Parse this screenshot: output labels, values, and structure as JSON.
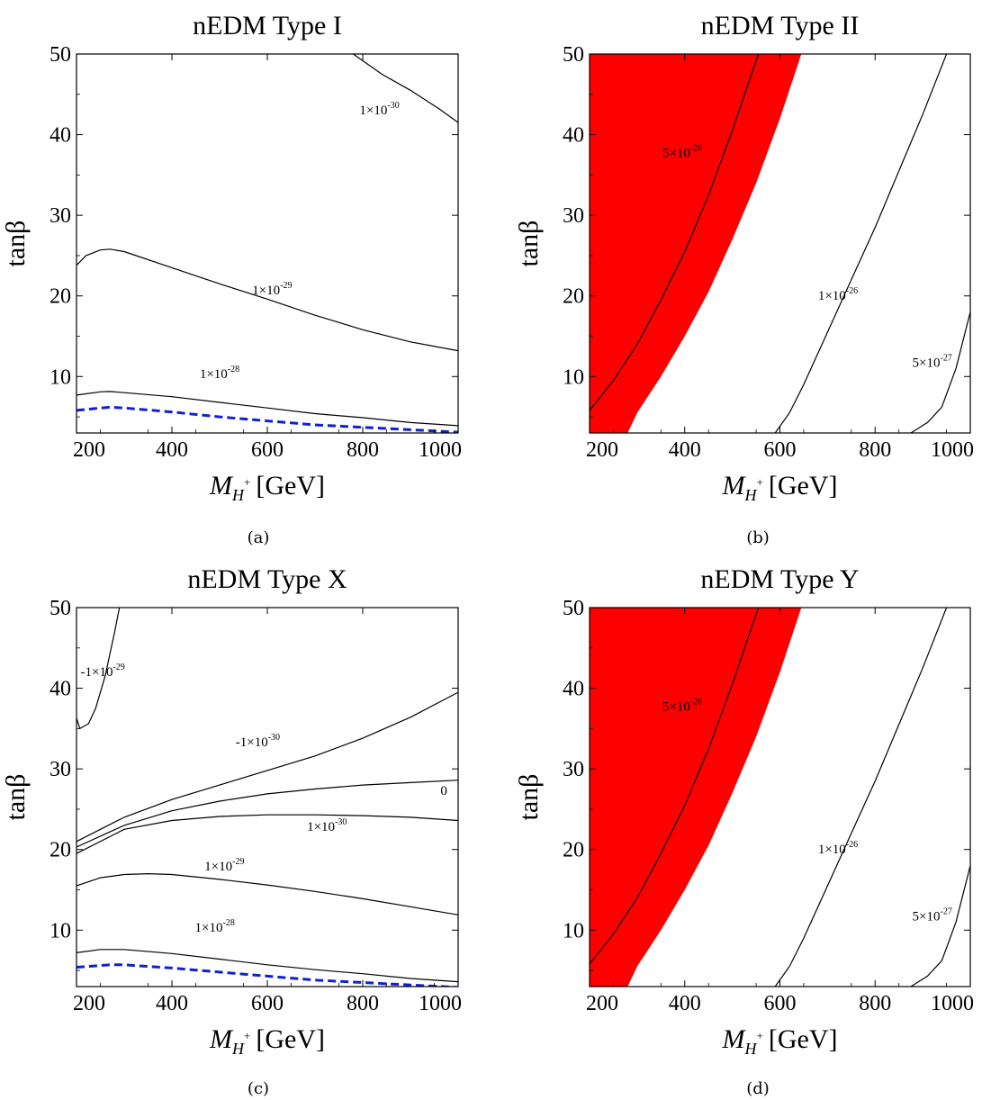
{
  "chart_data": [
    {
      "type": "line",
      "title": "nEDM Type I",
      "caption": "(a)",
      "xlabel": {
        "main": "M",
        "sub": "H",
        "sup": "+",
        "unit": "[GeV]"
      },
      "ylabel": "tanβ",
      "xlim": [
        200,
        1000
      ],
      "ylim": [
        3,
        50
      ],
      "xticks": [
        "200",
        "400",
        "600",
        "800",
        "1000"
      ],
      "yticks": [
        "10",
        "20",
        "30",
        "40",
        "50"
      ],
      "fill_regions": [],
      "series": [
        {
          "label_base": "1×10",
          "label_exp": "-30",
          "label_at": [
            835,
            42.5
          ],
          "style": "solid",
          "color": "#000000",
          "points": [
            [
              780,
              50
            ],
            [
              840,
              47.5
            ],
            [
              900,
              45.5
            ],
            [
              960,
              43.2
            ],
            [
              1000,
              41.5
            ]
          ]
        },
        {
          "label_base": "1×10",
          "label_exp": "-29",
          "label_at": [
            610,
            20.2
          ],
          "style": "solid",
          "color": "#000000",
          "points": [
            [
              200,
              23.8
            ],
            [
              220,
              25.0
            ],
            [
              250,
              25.7
            ],
            [
              270,
              25.8
            ],
            [
              300,
              25.5
            ],
            [
              400,
              23.5
            ],
            [
              500,
              21.5
            ],
            [
              600,
              19.6
            ],
            [
              700,
              17.6
            ],
            [
              800,
              15.8
            ],
            [
              900,
              14.3
            ],
            [
              1000,
              13.2
            ]
          ]
        },
        {
          "label_base": "1×10",
          "label_exp": "-28",
          "label_at": [
            500,
            9.8
          ],
          "style": "solid",
          "color": "#000000",
          "points": [
            [
              200,
              7.7
            ],
            [
              250,
              8.1
            ],
            [
              270,
              8.15
            ],
            [
              300,
              8.0
            ],
            [
              400,
              7.5
            ],
            [
              500,
              6.8
            ],
            [
              600,
              6.1
            ],
            [
              700,
              5.4
            ],
            [
              800,
              4.9
            ],
            [
              900,
              4.3
            ],
            [
              1000,
              3.9
            ]
          ]
        },
        {
          "style": "dashed",
          "color": "#1020d0",
          "points": [
            [
              200,
              5.8
            ],
            [
              270,
              6.2
            ],
            [
              300,
              6.1
            ],
            [
              400,
              5.6
            ],
            [
              500,
              5.0
            ],
            [
              600,
              4.5
            ],
            [
              700,
              4.0
            ],
            [
              800,
              3.7
            ],
            [
              900,
              3.4
            ],
            [
              1000,
              3.1
            ]
          ]
        }
      ]
    },
    {
      "type": "line",
      "title": "nEDM Type II",
      "caption": "(b)",
      "xlabel": {
        "main": "M",
        "sub": "H",
        "sup": "+",
        "unit": "[GeV]"
      },
      "ylabel": "tanβ",
      "xlim": [
        200,
        1000
      ],
      "ylim": [
        3,
        50
      ],
      "xticks": [
        "200",
        "400",
        "600",
        "800",
        "1000"
      ],
      "yticks": [
        "10",
        "20",
        "30",
        "40",
        "50"
      ],
      "fill_regions": [
        {
          "color": "#ff0000",
          "points": [
            [
              200,
              50
            ],
            [
              645,
              50
            ],
            [
              600,
              42
            ],
            [
              550,
              34
            ],
            [
              500,
              27
            ],
            [
              450,
              20.5
            ],
            [
              400,
              15
            ],
            [
              350,
              10
            ],
            [
              300,
              5.5
            ],
            [
              280,
              3
            ],
            [
              200,
              3
            ]
          ]
        }
      ],
      "series": [
        {
          "label_base": "5×10",
          "label_exp": "-26",
          "label_at": [
            395,
            37.2
          ],
          "style": "solid",
          "color": "#000000",
          "points": [
            [
              200,
              5.8
            ],
            [
              250,
              9.5
            ],
            [
              300,
              14
            ],
            [
              350,
              19.5
            ],
            [
              400,
              25.5
            ],
            [
              450,
              32.5
            ],
            [
              500,
              40.5
            ],
            [
              540,
              47.5
            ],
            [
              555,
              50
            ]
          ]
        },
        {
          "label_base": "1×10",
          "label_exp": "-26",
          "label_at": [
            722,
            19.5
          ],
          "style": "solid",
          "color": "#000000",
          "points": [
            [
              590,
              3
            ],
            [
              620,
              5.5
            ],
            [
              650,
              9
            ],
            [
              700,
              15.5
            ],
            [
              750,
              22
            ],
            [
              800,
              28.5
            ],
            [
              850,
              35.5
            ],
            [
              900,
              42.5
            ],
            [
              950,
              50
            ]
          ]
        },
        {
          "label_base": "5×10",
          "label_exp": "-27",
          "label_at": [
            920,
            11.2
          ],
          "style": "solid",
          "color": "#000000",
          "points": [
            [
              875,
              3
            ],
            [
              910,
              4.3
            ],
            [
              940,
              6.2
            ],
            [
              970,
              11
            ],
            [
              1000,
              18
            ]
          ]
        }
      ]
    },
    {
      "type": "line",
      "title": "nEDM Type X",
      "caption": "(c)",
      "xlabel": {
        "main": "M",
        "sub": "H",
        "sup": "+",
        "unit": "[GeV]"
      },
      "ylabel": "tanβ",
      "xlim": [
        200,
        1000
      ],
      "ylim": [
        3,
        50
      ],
      "xticks": [
        "200",
        "400",
        "600",
        "800",
        "1000"
      ],
      "yticks": [
        "10",
        "20",
        "30",
        "40",
        "50"
      ],
      "fill_regions": [],
      "series": [
        {
          "label_base": "-1×10",
          "label_exp": "-29",
          "label_at": [
            255,
            41.5
          ],
          "style": "solid",
          "color": "#000000",
          "points": [
            [
              200,
              36.3
            ],
            [
              207,
              35.0
            ],
            [
              225,
              35.6
            ],
            [
              240,
              37.5
            ],
            [
              260,
              41.5
            ],
            [
              280,
              47
            ],
            [
              290,
              50
            ]
          ]
        },
        {
          "label_base": "-1×10",
          "label_exp": "-30",
          "label_at": [
            580,
            32.8
          ],
          "style": "solid",
          "color": "#000000",
          "points": [
            [
              200,
              21.0
            ],
            [
              300,
              24.0
            ],
            [
              400,
              26.2
            ],
            [
              500,
              28.0
            ],
            [
              600,
              29.8
            ],
            [
              700,
              31.6
            ],
            [
              800,
              33.8
            ],
            [
              900,
              36.4
            ],
            [
              1000,
              39.5
            ]
          ]
        },
        {
          "label_base": "0",
          "label_exp": "",
          "label_at": [
            970,
            26.8
          ],
          "style": "solid",
          "color": "#000000",
          "points": [
            [
              200,
              20.3
            ],
            [
              300,
              23.0
            ],
            [
              400,
              24.8
            ],
            [
              500,
              26.0
            ],
            [
              600,
              26.9
            ],
            [
              700,
              27.5
            ],
            [
              800,
              28.0
            ],
            [
              900,
              28.3
            ],
            [
              1000,
              28.6
            ]
          ]
        },
        {
          "label_base": "1×10",
          "label_exp": "-30",
          "label_at": [
            725,
            22.3
          ],
          "style": "solid",
          "color": "#000000",
          "points": [
            [
              200,
              19.5
            ],
            [
              300,
              22.5
            ],
            [
              400,
              23.6
            ],
            [
              500,
              24.1
            ],
            [
              600,
              24.3
            ],
            [
              700,
              24.3
            ],
            [
              800,
              24.2
            ],
            [
              900,
              24.0
            ],
            [
              1000,
              23.6
            ]
          ]
        },
        {
          "label_base": "1×10",
          "label_exp": "-29",
          "label_at": [
            510,
            17.4
          ],
          "style": "solid",
          "color": "#000000",
          "points": [
            [
              200,
              15.5
            ],
            [
              250,
              16.5
            ],
            [
              300,
              16.9
            ],
            [
              350,
              17.0
            ],
            [
              400,
              16.9
            ],
            [
              500,
              16.3
            ],
            [
              600,
              15.6
            ],
            [
              700,
              14.8
            ],
            [
              800,
              13.9
            ],
            [
              900,
              12.9
            ],
            [
              1000,
              11.9
            ]
          ]
        },
        {
          "label_base": "1×10",
          "label_exp": "-28",
          "label_at": [
            490,
            9.8
          ],
          "style": "solid",
          "color": "#000000",
          "points": [
            [
              200,
              7.2
            ],
            [
              250,
              7.6
            ],
            [
              300,
              7.6
            ],
            [
              400,
              7.1
            ],
            [
              500,
              6.4
            ],
            [
              600,
              5.7
            ],
            [
              700,
              5.1
            ],
            [
              800,
              4.6
            ],
            [
              900,
              4.0
            ],
            [
              1000,
              3.6
            ]
          ]
        },
        {
          "style": "dashed",
          "color": "#1020d0",
          "points": [
            [
              200,
              5.4
            ],
            [
              270,
              5.7
            ],
            [
              300,
              5.7
            ],
            [
              400,
              5.3
            ],
            [
              500,
              4.8
            ],
            [
              600,
              4.3
            ],
            [
              700,
              3.8
            ],
            [
              800,
              3.5
            ],
            [
              900,
              3.2
            ],
            [
              1000,
              2.9
            ]
          ]
        }
      ]
    },
    {
      "type": "line",
      "title": "nEDM Type Y",
      "caption": "(d)",
      "xlabel": {
        "main": "M",
        "sub": "H",
        "sup": "+",
        "unit": "[GeV]"
      },
      "ylabel": "tanβ",
      "xlim": [
        200,
        1000
      ],
      "ylim": [
        3,
        50
      ],
      "xticks": [
        "200",
        "400",
        "600",
        "800",
        "1000"
      ],
      "yticks": [
        "10",
        "20",
        "30",
        "40",
        "50"
      ],
      "fill_regions": [
        {
          "color": "#ff0000",
          "points": [
            [
              200,
              50
            ],
            [
              645,
              50
            ],
            [
              600,
              42
            ],
            [
              550,
              34
            ],
            [
              500,
              27
            ],
            [
              450,
              20.5
            ],
            [
              400,
              15
            ],
            [
              350,
              10
            ],
            [
              300,
              5.5
            ],
            [
              280,
              3
            ],
            [
              200,
              3
            ]
          ]
        }
      ],
      "series": [
        {
          "label_base": "5×10",
          "label_exp": "-26",
          "label_at": [
            395,
            37.2
          ],
          "style": "solid",
          "color": "#000000",
          "points": [
            [
              200,
              5.8
            ],
            [
              250,
              9.5
            ],
            [
              300,
              14
            ],
            [
              350,
              19.5
            ],
            [
              400,
              25.5
            ],
            [
              450,
              32.5
            ],
            [
              500,
              40.5
            ],
            [
              540,
              47.5
            ],
            [
              555,
              50
            ]
          ]
        },
        {
          "label_base": "1×10",
          "label_exp": "-26",
          "label_at": [
            722,
            19.5
          ],
          "style": "solid",
          "color": "#000000",
          "points": [
            [
              590,
              3
            ],
            [
              620,
              5.5
            ],
            [
              650,
              9
            ],
            [
              700,
              15.5
            ],
            [
              750,
              22
            ],
            [
              800,
              28.5
            ],
            [
              850,
              35.5
            ],
            [
              900,
              42.5
            ],
            [
              950,
              50
            ]
          ]
        },
        {
          "label_base": "5×10",
          "label_exp": "-27",
          "label_at": [
            920,
            11.2
          ],
          "style": "solid",
          "color": "#000000",
          "points": [
            [
              875,
              3
            ],
            [
              910,
              4.3
            ],
            [
              940,
              6.2
            ],
            [
              970,
              11
            ],
            [
              1000,
              18
            ]
          ]
        }
      ]
    }
  ]
}
